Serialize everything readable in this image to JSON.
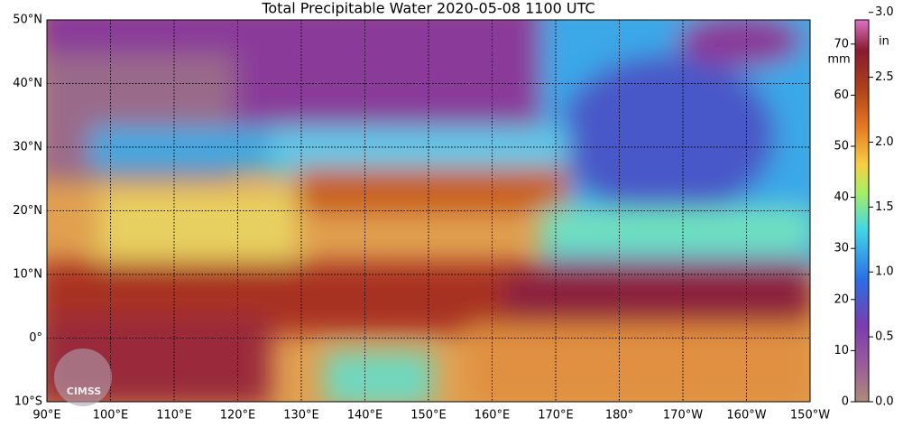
{
  "title": "Total Precipitable Water  2020-05-08 1100 UTC",
  "lat_labels": [
    "50°N",
    "40°N",
    "30°N",
    "20°N",
    "10°N",
    "0°",
    "10°S"
  ],
  "lon_labels": [
    "90°E",
    "100°E",
    "110°E",
    "120°E",
    "130°E",
    "140°E",
    "150°E",
    "160°E",
    "170°E",
    "180°",
    "170°W",
    "160°W",
    "150°W"
  ],
  "colorbar": {
    "mm_unit": "mm",
    "mm_ticks": [
      0,
      10,
      20,
      30,
      40,
      50,
      60,
      70
    ],
    "in_unit": "in",
    "in_ticks": [
      "0.0",
      "0.5",
      "1.0",
      "1.5",
      "2.0",
      "2.5",
      "3.0"
    ]
  },
  "logo": "CIMSS"
}
